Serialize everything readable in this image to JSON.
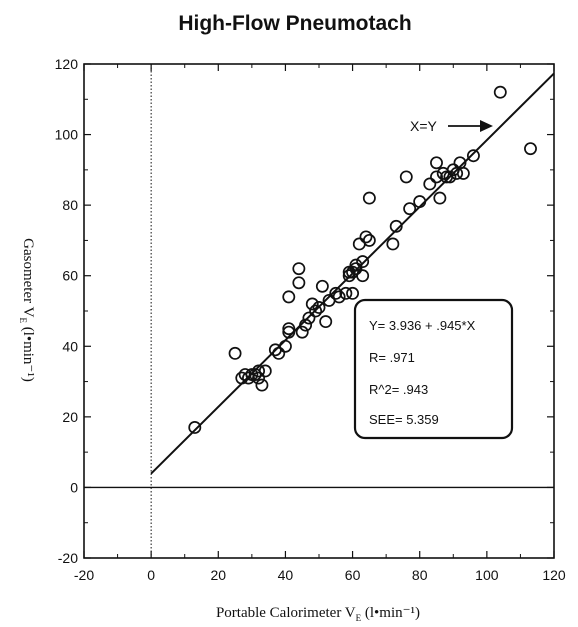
{
  "chart_data": {
    "type": "scatter",
    "title": "High-Flow Pneumotach",
    "xlabel": "Portable Calorimeter V",
    "xlabel_sub": "E",
    "xlabel_unit": " (l•min⁻¹)",
    "ylabel": "Gasometer V",
    "ylabel_sub": "E",
    "ylabel_unit": " (l•min⁻¹)",
    "xlim": [
      -20,
      120
    ],
    "ylim": [
      -20,
      120
    ],
    "xticks": [
      -20,
      0,
      20,
      40,
      60,
      80,
      100,
      120
    ],
    "yticks": [
      -20,
      0,
      20,
      40,
      60,
      80,
      100,
      120
    ],
    "grid": false,
    "regression": {
      "intercept": 3.936,
      "slope": 0.945,
      "x_range": [
        0,
        120
      ]
    },
    "identity_annotation": {
      "text": "X=Y"
    },
    "stats_box_lines": [
      "Y= 3.936 + .945*X",
      "R= .971",
      "R^2= .943",
      "SEE= 5.359"
    ],
    "points": [
      [
        13,
        17
      ],
      [
        25,
        38
      ],
      [
        27,
        31
      ],
      [
        28,
        32
      ],
      [
        29,
        31
      ],
      [
        30,
        32
      ],
      [
        31,
        32
      ],
      [
        32,
        31
      ],
      [
        32,
        33
      ],
      [
        33,
        29
      ],
      [
        34,
        33
      ],
      [
        37,
        39
      ],
      [
        38,
        38
      ],
      [
        40,
        40
      ],
      [
        41,
        45
      ],
      [
        41,
        44
      ],
      [
        41,
        54
      ],
      [
        44,
        62
      ],
      [
        44,
        58
      ],
      [
        45,
        44
      ],
      [
        46,
        46
      ],
      [
        47,
        48
      ],
      [
        48,
        52
      ],
      [
        49,
        50
      ],
      [
        50,
        51
      ],
      [
        51,
        57
      ],
      [
        52,
        47
      ],
      [
        53,
        53
      ],
      [
        55,
        55
      ],
      [
        56,
        54
      ],
      [
        58,
        55
      ],
      [
        59,
        60
      ],
      [
        59,
        61
      ],
      [
        60,
        55
      ],
      [
        60,
        61
      ],
      [
        61,
        63
      ],
      [
        61,
        62
      ],
      [
        62,
        69
      ],
      [
        63,
        64
      ],
      [
        63,
        60
      ],
      [
        64,
        71
      ],
      [
        65,
        82
      ],
      [
        65,
        70
      ],
      [
        72,
        69
      ],
      [
        73,
        74
      ],
      [
        76,
        88
      ],
      [
        77,
        79
      ],
      [
        80,
        81
      ],
      [
        83,
        86
      ],
      [
        85,
        92
      ],
      [
        85,
        88
      ],
      [
        86,
        82
      ],
      [
        87,
        89
      ],
      [
        88,
        88
      ],
      [
        89,
        88
      ],
      [
        90,
        90
      ],
      [
        91,
        89
      ],
      [
        92,
        92
      ],
      [
        93,
        89
      ],
      [
        96,
        94
      ],
      [
        104,
        112
      ],
      [
        113,
        96
      ]
    ]
  }
}
